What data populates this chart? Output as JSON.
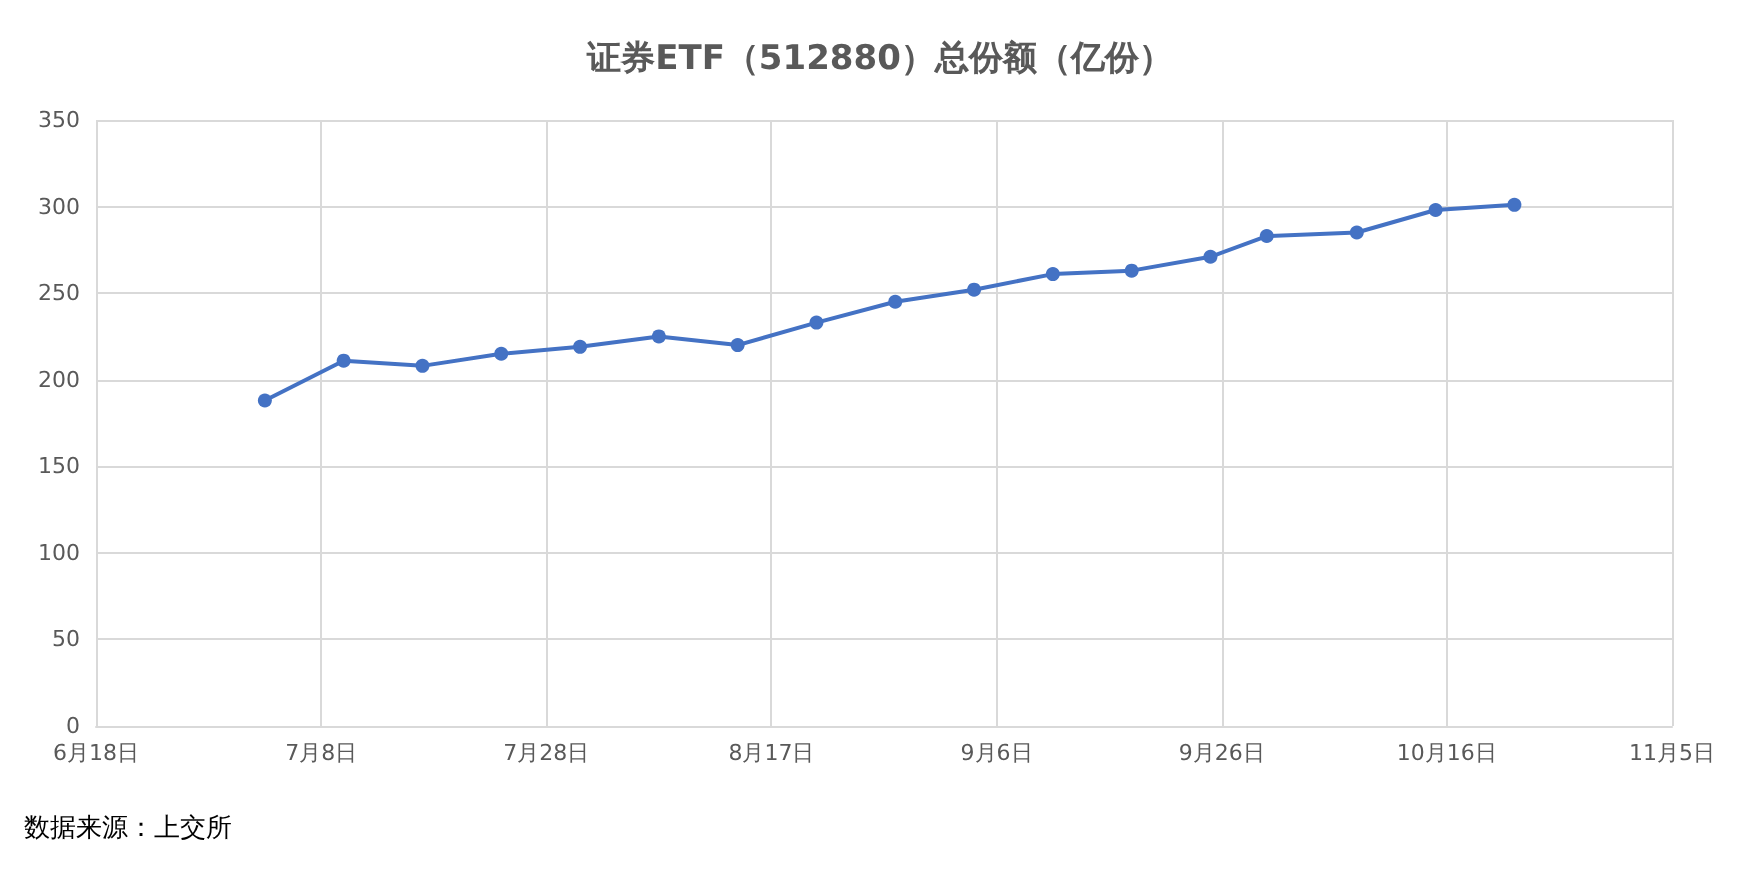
{
  "chart_data": {
    "type": "line",
    "title": "证券ETF（512880）总份额（亿份）",
    "x": [
      "--07-03",
      "--07-10",
      "--07-17",
      "--07-24",
      "--07-31",
      "--08-07",
      "--08-14",
      "--08-21",
      "--08-28",
      "--09-04",
      "--09-11",
      "--09-18",
      "--09-25",
      "--09-30",
      "--10-08",
      "--10-15",
      "--10-22"
    ],
    "series": [
      {
        "color": "#4472c4",
        "values": [
          188,
          211,
          208,
          215,
          219,
          225,
          220,
          233,
          245,
          252,
          261,
          263,
          271,
          283,
          285,
          298,
          301
        ]
      }
    ],
    "xlim": [
      "--06-18",
      "--11-05"
    ],
    "xticks": [
      {
        "value": "--06-18",
        "label": "6月18日"
      },
      {
        "value": "--07-08",
        "label": "7月8日"
      },
      {
        "value": "--07-28",
        "label": "7月28日"
      },
      {
        "value": "--08-17",
        "label": "8月17日"
      },
      {
        "value": "--09-06",
        "label": "9月6日"
      },
      {
        "value": "--09-26",
        "label": "9月26日"
      },
      {
        "value": "--10-16",
        "label": "10月16日"
      },
      {
        "value": "--11-05",
        "label": "11月5日"
      }
    ],
    "ylim": [
      0,
      350
    ],
    "yticks": [
      0,
      50,
      100,
      150,
      200,
      250,
      300,
      350
    ],
    "grid": true,
    "marker": "circle",
    "line_style": "solid",
    "annotations": [
      "数据来源：上交所"
    ]
  }
}
